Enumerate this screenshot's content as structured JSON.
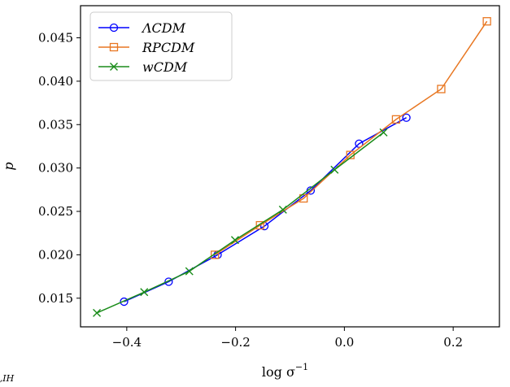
{
  "chart_data": {
    "type": "line",
    "xlabel": "log σ",
    "xlabel_sup": "−1",
    "xlabel_sub": "NL,IH",
    "ylabel": "p",
    "xlim": [
      -0.485,
      0.285
    ],
    "ylim": [
      0.0117,
      0.0487
    ],
    "xticks": [
      {
        "value": -0.4,
        "label": "−0.4"
      },
      {
        "value": -0.2,
        "label": "−0.2"
      },
      {
        "value": 0.0,
        "label": "0.0"
      },
      {
        "value": 0.2,
        "label": "0.2"
      }
    ],
    "yticks": [
      {
        "value": 0.015,
        "label": "0.015"
      },
      {
        "value": 0.02,
        "label": "0.020"
      },
      {
        "value": 0.025,
        "label": "0.025"
      },
      {
        "value": 0.03,
        "label": "0.030"
      },
      {
        "value": 0.035,
        "label": "0.035"
      },
      {
        "value": 0.04,
        "label": "0.040"
      },
      {
        "value": 0.045,
        "label": "0.045"
      }
    ],
    "grid": false,
    "legend_position": "upper-left",
    "series": [
      {
        "name": "ΛCDM",
        "color": "#0000ff",
        "marker": "circle",
        "x": [
          -0.405,
          -0.323,
          -0.233,
          -0.147,
          -0.062,
          0.027,
          0.114
        ],
        "y": [
          0.0146,
          0.0169,
          0.02,
          0.0233,
          0.0274,
          0.0328,
          0.0358
        ]
      },
      {
        "name": "RPCDM",
        "color": "#e87722",
        "marker": "square",
        "x": [
          -0.238,
          -0.155,
          -0.075,
          0.011,
          0.095,
          0.178,
          0.262
        ],
        "y": [
          0.02,
          0.0234,
          0.0265,
          0.0315,
          0.0356,
          0.0391,
          0.0469
        ]
      },
      {
        "name": "wCDM",
        "color": "#1a8c1a",
        "marker": "x",
        "x": [
          -0.455,
          -0.368,
          -0.285,
          -0.201,
          -0.113,
          -0.018,
          0.072
        ],
        "y": [
          0.0133,
          0.0157,
          0.0181,
          0.0217,
          0.0252,
          0.0298,
          0.0341
        ]
      }
    ]
  }
}
